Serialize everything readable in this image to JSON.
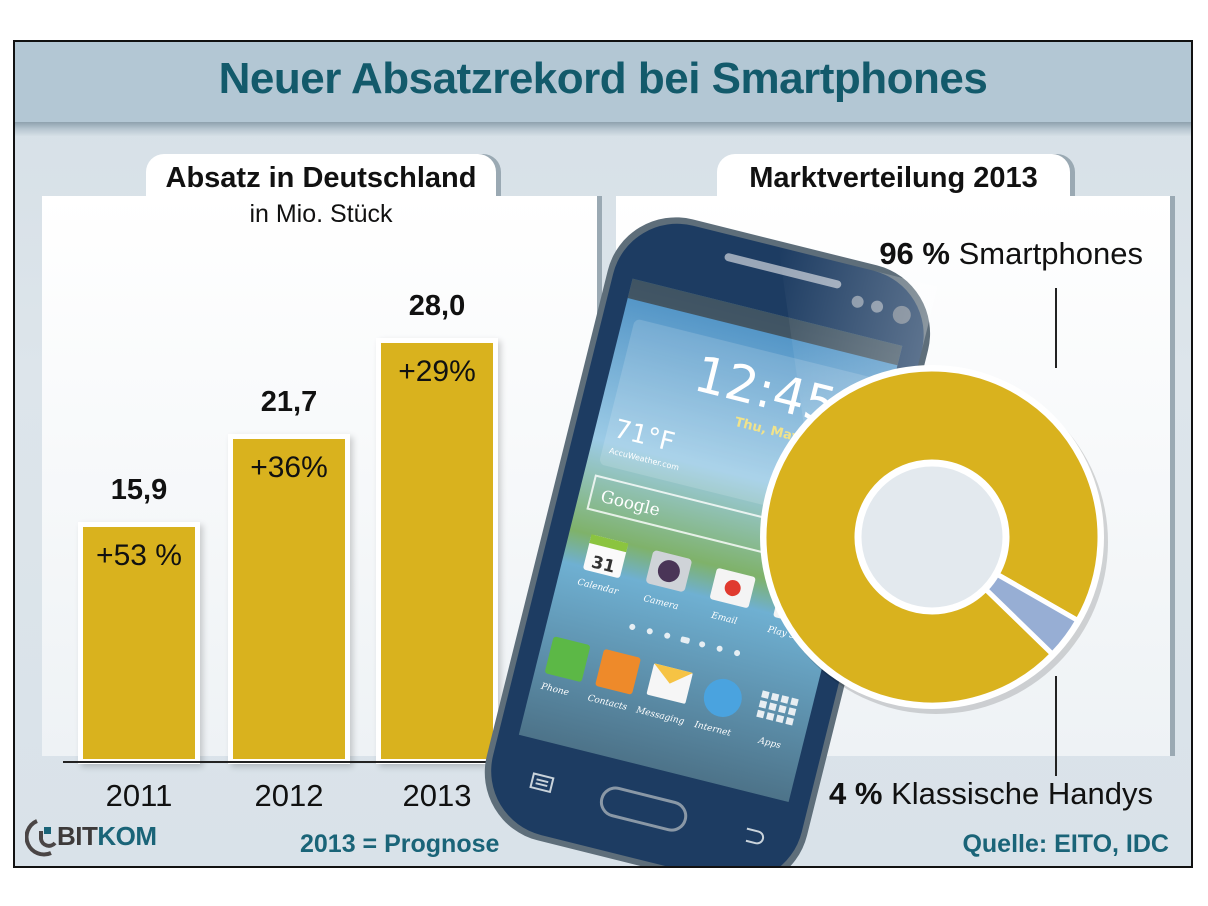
{
  "title": "Neuer Absatzrekord bei Smartphones",
  "left_panel": {
    "tab_label": "Absatz in Deutschland",
    "subtitle": "in Mio. Stück"
  },
  "right_panel": {
    "tab_label": "Marktverteilung 2013"
  },
  "footer": {
    "logo_part1": "BIT",
    "logo_part2": "KOM",
    "forecast_note": "2013 = Prognose",
    "source": "Quelle: EITO, IDC"
  },
  "phone_screen": {
    "clock": "12:45",
    "date": "Thu, May 3",
    "temperature": "71°F",
    "weather_provider": "AccuWeather.com",
    "search_label": "Google",
    "calendar_day": "31",
    "apps_row1": [
      "Calendar",
      "Camera",
      "Email",
      "Play Store"
    ],
    "apps_row2": [
      "Phone",
      "Contacts",
      "Messaging",
      "Internet",
      "Apps"
    ]
  },
  "colors": {
    "bar": "#d9b21e",
    "title": "#135a6b",
    "smartphones": "#d9b21e",
    "classic": "#97aed4",
    "accent_text": "#1a6478"
  },
  "chart_data": [
    {
      "type": "bar",
      "title": "Absatz in Deutschland",
      "subtitle": "in Mio. Stück",
      "categories": [
        "2011",
        "2012",
        "2013"
      ],
      "values": [
        15.9,
        21.7,
        28.0
      ],
      "value_labels": [
        "15,9",
        "21,7",
        "28,0"
      ],
      "growth_labels": [
        "+53 %",
        "+36%",
        "+29%"
      ],
      "xlabel": "",
      "ylabel": "Mio. Stück",
      "ylim": [
        0,
        30
      ],
      "grid": false,
      "note": "2013 = Prognose"
    },
    {
      "type": "pie",
      "title": "Marktverteilung 2013",
      "donut": true,
      "slices": [
        {
          "label": "Smartphones",
          "value": 96,
          "value_label": "96 %"
        },
        {
          "label": "Klassische Handys",
          "value": 4,
          "value_label": "4 %"
        }
      ]
    }
  ]
}
